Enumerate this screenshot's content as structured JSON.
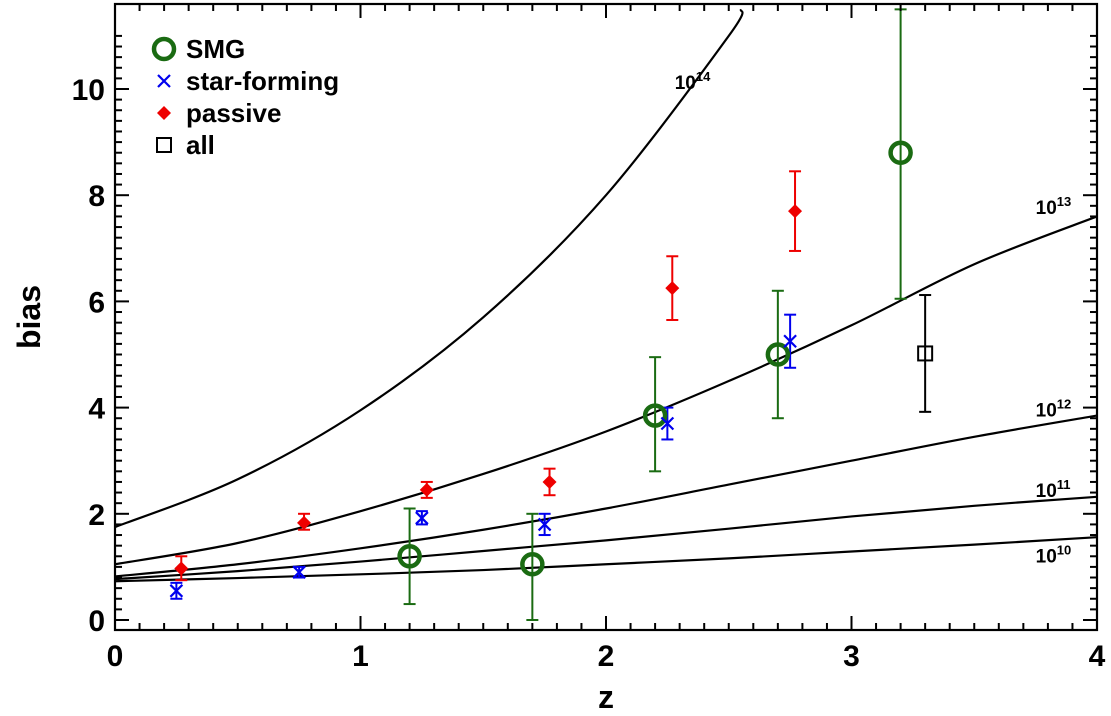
{
  "chart_data": {
    "type": "scatter",
    "xlabel": "z",
    "ylabel": "bias",
    "xlim": [
      0,
      4
    ],
    "ylim": [
      -0.2,
      11.5
    ],
    "x_ticks": [
      0,
      1,
      2,
      3,
      4
    ],
    "y_ticks": [
      0,
      2,
      4,
      6,
      8,
      10
    ],
    "legend_position": "top-left",
    "series": [
      {
        "name": "SMG",
        "marker": "circle",
        "color": "#1a6b12",
        "points": [
          {
            "x": 1.2,
            "y": 1.2,
            "ylo": 0.3,
            "yhi": 2.1
          },
          {
            "x": 1.7,
            "y": 1.05,
            "ylo": 0.0,
            "yhi": 2.0
          },
          {
            "x": 2.2,
            "y": 3.85,
            "ylo": 2.8,
            "yhi": 4.95
          },
          {
            "x": 2.7,
            "y": 5.0,
            "ylo": 3.8,
            "yhi": 6.2
          },
          {
            "x": 3.2,
            "y": 8.8,
            "ylo": 6.05,
            "yhi": 11.5
          }
        ]
      },
      {
        "name": "star-forming",
        "marker": "x",
        "color": "#0000ee",
        "points": [
          {
            "x": 0.25,
            "y": 0.55,
            "ylo": 0.4,
            "yhi": 0.7
          },
          {
            "x": 0.75,
            "y": 0.9,
            "ylo": 0.8,
            "yhi": 1.0
          },
          {
            "x": 1.25,
            "y": 1.92,
            "ylo": 1.8,
            "yhi": 2.05
          },
          {
            "x": 1.75,
            "y": 1.8,
            "ylo": 1.6,
            "yhi": 2.0
          },
          {
            "x": 2.25,
            "y": 3.7,
            "ylo": 3.4,
            "yhi": 4.0
          },
          {
            "x": 2.75,
            "y": 5.25,
            "ylo": 4.75,
            "yhi": 5.75
          }
        ]
      },
      {
        "name": "passive",
        "marker": "diamond",
        "color": "#ee0000",
        "points": [
          {
            "x": 0.27,
            "y": 0.97,
            "ylo": 0.75,
            "yhi": 1.2
          },
          {
            "x": 0.77,
            "y": 1.83,
            "ylo": 1.7,
            "yhi": 2.0
          },
          {
            "x": 1.27,
            "y": 2.45,
            "ylo": 2.3,
            "yhi": 2.6
          },
          {
            "x": 1.77,
            "y": 2.6,
            "ylo": 2.35,
            "yhi": 2.85
          },
          {
            "x": 2.27,
            "y": 6.25,
            "ylo": 5.65,
            "yhi": 6.85
          },
          {
            "x": 2.77,
            "y": 7.7,
            "ylo": 6.95,
            "yhi": 8.45
          }
        ]
      },
      {
        "name": "all",
        "marker": "square",
        "color": "#000000",
        "points": [
          {
            "x": 3.3,
            "y": 5.02,
            "ylo": 3.92,
            "yhi": 6.12
          }
        ]
      }
    ],
    "halo_curves": [
      {
        "label_base": "10",
        "label_exp": "14",
        "label_x": 2.28,
        "label_y": 10.0,
        "points": [
          [
            0,
            1.75
          ],
          [
            0.5,
            2.65
          ],
          [
            1.0,
            3.95
          ],
          [
            1.5,
            5.7
          ],
          [
            2.0,
            8.0
          ],
          [
            2.5,
            11.0
          ],
          [
            2.55,
            11.5
          ]
        ]
      },
      {
        "label_base": "10",
        "label_exp": "13",
        "label_x": 3.75,
        "label_y": 7.65,
        "points": [
          [
            0,
            1.05
          ],
          [
            0.5,
            1.45
          ],
          [
            1.0,
            2.05
          ],
          [
            1.5,
            2.75
          ],
          [
            2.0,
            3.55
          ],
          [
            2.5,
            4.5
          ],
          [
            3.0,
            5.55
          ],
          [
            3.5,
            6.7
          ],
          [
            4.0,
            7.6
          ]
        ]
      },
      {
        "label_base": "10",
        "label_exp": "12",
        "label_x": 3.75,
        "label_y": 3.83,
        "points": [
          [
            0,
            0.82
          ],
          [
            0.5,
            1.05
          ],
          [
            1.0,
            1.35
          ],
          [
            1.5,
            1.7
          ],
          [
            2.0,
            2.1
          ],
          [
            2.5,
            2.55
          ],
          [
            3.0,
            3.0
          ],
          [
            3.5,
            3.45
          ],
          [
            4.0,
            3.85
          ]
        ]
      },
      {
        "label_base": "10",
        "label_exp": "11",
        "label_x": 3.75,
        "label_y": 2.32,
        "points": [
          [
            0,
            0.77
          ],
          [
            0.5,
            0.92
          ],
          [
            1.0,
            1.1
          ],
          [
            1.5,
            1.3
          ],
          [
            2.0,
            1.5
          ],
          [
            2.5,
            1.72
          ],
          [
            3.0,
            1.95
          ],
          [
            3.5,
            2.15
          ],
          [
            4.0,
            2.32
          ]
        ]
      },
      {
        "label_base": "10",
        "label_exp": "10",
        "label_x": 3.75,
        "label_y": 1.08,
        "points": [
          [
            0,
            0.73
          ],
          [
            0.5,
            0.79
          ],
          [
            1.0,
            0.86
          ],
          [
            1.5,
            0.94
          ],
          [
            2.0,
            1.05
          ],
          [
            2.5,
            1.16
          ],
          [
            3.0,
            1.29
          ],
          [
            3.5,
            1.42
          ],
          [
            4.0,
            1.56
          ]
        ]
      }
    ]
  }
}
